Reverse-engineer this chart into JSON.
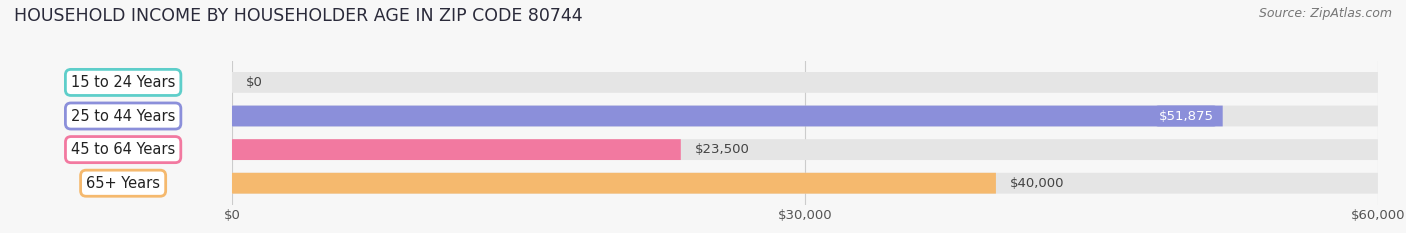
{
  "title": "HOUSEHOLD INCOME BY HOUSEHOLDER AGE IN ZIP CODE 80744",
  "source": "Source: ZipAtlas.com",
  "categories": [
    "15 to 24 Years",
    "25 to 44 Years",
    "45 to 64 Years",
    "65+ Years"
  ],
  "values": [
    0,
    51875,
    23500,
    40000
  ],
  "bar_colors": [
    "#5ececa",
    "#8b8fda",
    "#f279a0",
    "#f5b96e"
  ],
  "value_labels": [
    "$0",
    "$51,875",
    "$23,500",
    "$40,000"
  ],
  "xmax": 60000,
  "xticks": [
    0,
    30000,
    60000
  ],
  "xticklabels": [
    "$0",
    "$30,000",
    "$60,000"
  ],
  "background_color": "#f7f7f7",
  "bar_bg_full": "#e5e5e5",
  "title_fontsize": 12.5,
  "source_fontsize": 9,
  "label_fontsize": 9.5,
  "tick_fontsize": 9.5,
  "category_fontsize": 10.5
}
